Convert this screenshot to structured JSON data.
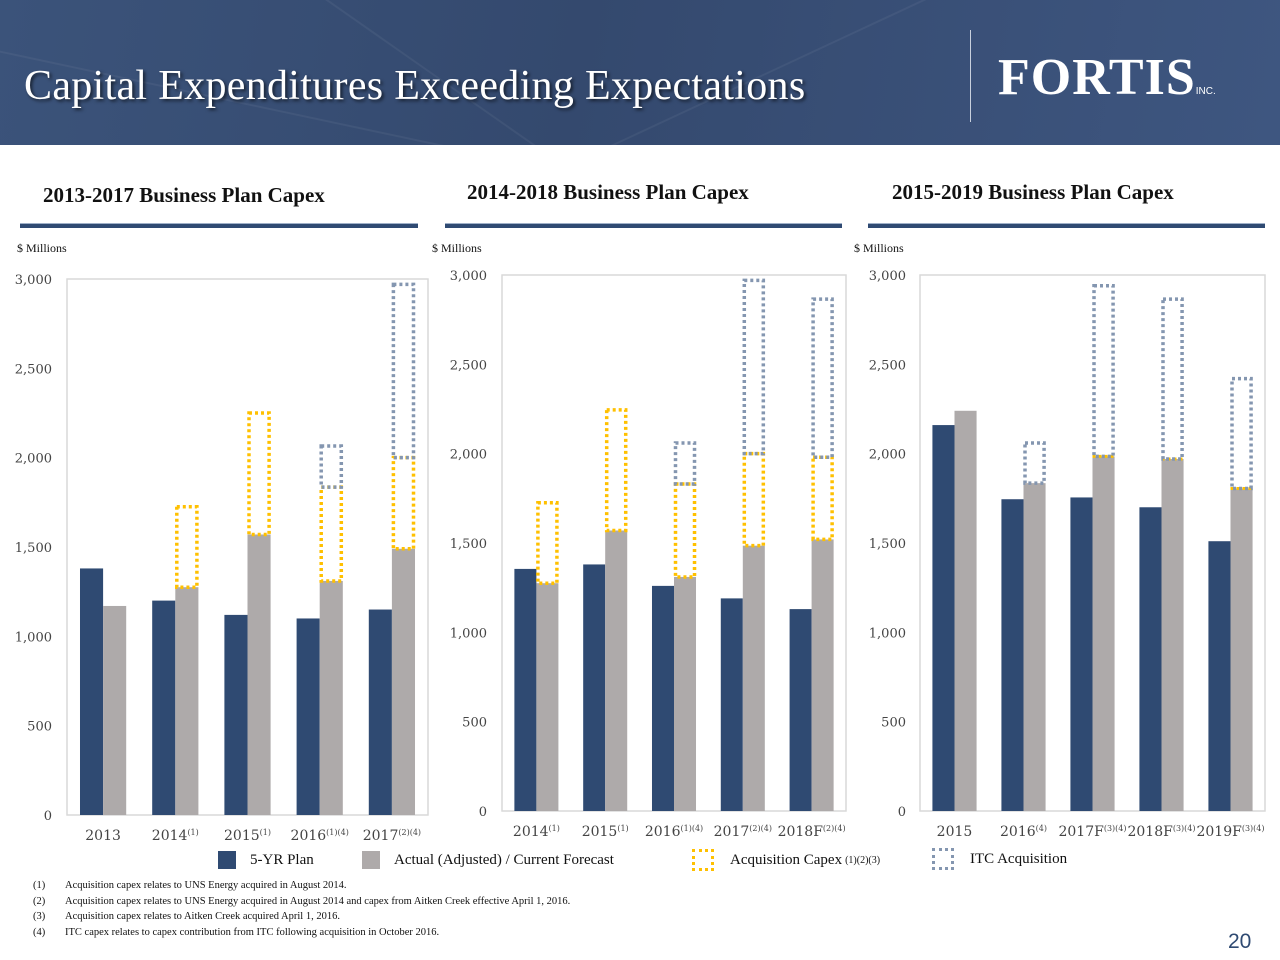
{
  "header": {
    "title": "Capital Expenditures Exceeding Expectations",
    "logo_text": "FORTIS",
    "logo_suffix": "INC."
  },
  "colors": {
    "plan": "#2f4a72",
    "actual": "#aeaaaa",
    "acquisition": "#ffc000",
    "itc": "#8496b0",
    "header_bg": "#34496e"
  },
  "legend": {
    "plan": "5-YR Plan",
    "actual": "Actual (Adjusted) / Current Forecast",
    "acquisition": "Acquisition Capex",
    "acquisition_sup": "(1)(2)(3)",
    "itc": "ITC Acquisition"
  },
  "chart_data": [
    {
      "type": "bar",
      "title": "2013-2017 Business Plan Capex",
      "ylabel": "$ Millions",
      "ylim": [
        0,
        3000
      ],
      "yticks": [
        "0",
        "500",
        "1,000",
        "1,500",
        "2,000",
        "2,500",
        "3,000"
      ],
      "grid": false,
      "categories": [
        {
          "label": "2013",
          "sup": ""
        },
        {
          "label": "2014",
          "sup": "(1)"
        },
        {
          "label": "2015",
          "sup": "(1)"
        },
        {
          "label": "2016",
          "sup": "(1)(4)"
        },
        {
          "label": "2017",
          "sup": "(2)(4)"
        }
      ],
      "series": [
        {
          "name": "5-YR Plan",
          "values": [
            1380,
            1200,
            1120,
            1100,
            1150
          ]
        },
        {
          "name": "Actual (Adjusted) / Current Forecast",
          "values": [
            1170,
            1275,
            1570,
            1310,
            1490
          ]
        },
        {
          "name": "Acquisition Capex",
          "stacked_on": "Actual (Adjusted) / Current Forecast",
          "values": [
            0,
            450,
            680,
            525,
            510
          ]
        },
        {
          "name": "ITC Acquisition",
          "stacked_on": "Acquisition Capex",
          "values": [
            0,
            0,
            0,
            230,
            970
          ]
        }
      ]
    },
    {
      "type": "bar",
      "title": "2014-2018 Business Plan Capex",
      "ylabel": "$ Millions",
      "ylim": [
        0,
        3000
      ],
      "yticks": [
        "0",
        "500",
        "1,000",
        "1,500",
        "2,000",
        "2,500",
        "3,000"
      ],
      "grid": false,
      "categories": [
        {
          "label": "2014",
          "sup": "(1)"
        },
        {
          "label": "2015",
          "sup": "(1)"
        },
        {
          "label": "2016",
          "sup": "(1)(4)"
        },
        {
          "label": "2017",
          "sup": "(2)(4)"
        },
        {
          "label": "2018F",
          "sup": "(2)(4)"
        }
      ],
      "series": [
        {
          "name": "5-YR Plan",
          "values": [
            1355,
            1380,
            1260,
            1190,
            1130
          ]
        },
        {
          "name": "Actual (Adjusted) / Current Forecast",
          "values": [
            1275,
            1570,
            1310,
            1485,
            1520
          ]
        },
        {
          "name": "Acquisition Capex",
          "stacked_on": "Actual (Adjusted) / Current Forecast",
          "values": [
            450,
            675,
            520,
            515,
            460
          ]
        },
        {
          "name": "ITC Acquisition",
          "stacked_on": "Acquisition Capex",
          "values": [
            0,
            0,
            230,
            970,
            885
          ]
        }
      ]
    },
    {
      "type": "bar",
      "title": "2015-2019 Business Plan Capex",
      "ylabel": "$ Millions",
      "ylim": [
        0,
        3000
      ],
      "yticks": [
        "0",
        "500",
        "1,000",
        "1,500",
        "2,000",
        "2,500",
        "3,000"
      ],
      "grid": false,
      "categories": [
        {
          "label": "2015",
          "sup": ""
        },
        {
          "label": "2016",
          "sup": "(4)"
        },
        {
          "label": "2017F",
          "sup": "(3)(4)"
        },
        {
          "label": "2018F",
          "sup": "(3)(4)"
        },
        {
          "label": "2019F",
          "sup": "(3)(4)"
        }
      ],
      "series": [
        {
          "name": "5-YR Plan",
          "values": [
            2160,
            1745,
            1755,
            1700,
            1510
          ]
        },
        {
          "name": "Actual (Adjusted) / Current Forecast",
          "values": [
            2240,
            1835,
            1985,
            1970,
            1805
          ]
        },
        {
          "name": "Acquisition Capex",
          "stacked_on": "Actual (Adjusted) / Current Forecast",
          "values": [
            0,
            0,
            0,
            0,
            0
          ]
        },
        {
          "name": "ITC Acquisition",
          "stacked_on": "Acquisition Capex",
          "values": [
            0,
            225,
            955,
            895,
            615
          ]
        }
      ]
    }
  ],
  "footnotes": [
    {
      "num": "(1)",
      "text": "Acquisition capex relates to UNS Energy acquired in August 2014."
    },
    {
      "num": "(2)",
      "text": "Acquisition capex relates to UNS Energy acquired in August 2014 and capex from Aitken Creek effective April 1, 2016."
    },
    {
      "num": "(3)",
      "text": "Acquisition capex relates to Aitken Creek acquired April 1, 2016."
    },
    {
      "num": "(4)",
      "text": "ITC capex relates to capex contribution from ITC following acquisition in October 2016."
    }
  ],
  "page_number": "20"
}
